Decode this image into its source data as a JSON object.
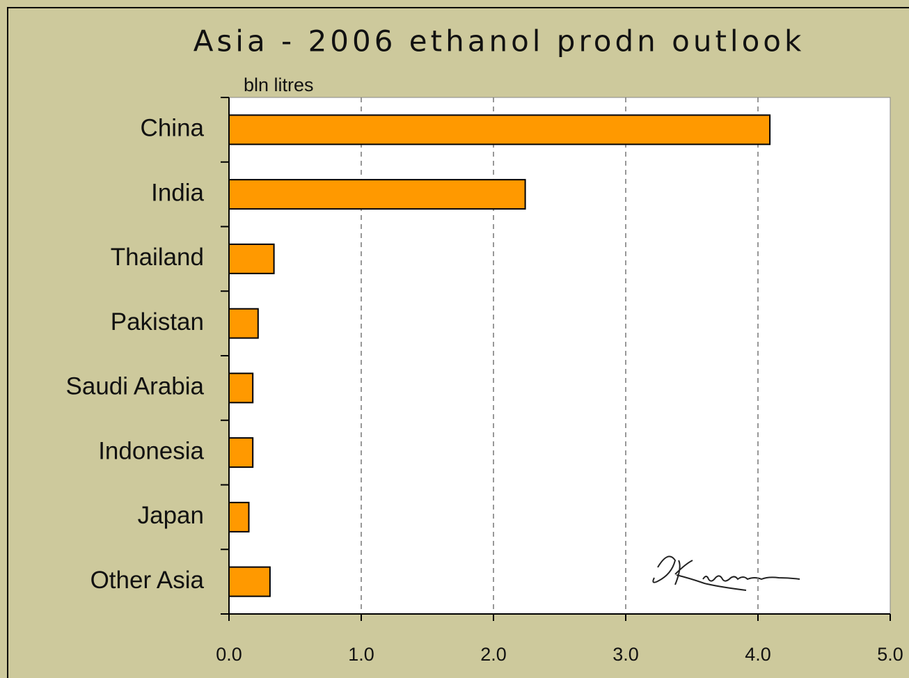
{
  "chart_data": {
    "type": "bar",
    "orientation": "horizontal",
    "title": "Asia - 2006 ethanol prodn outlook",
    "y_label": "bln litres",
    "categories": [
      "China",
      "India",
      "Thailand",
      "Pakistan",
      "Saudi Arabia",
      "Indonesia",
      "Japan",
      "Other Asia"
    ],
    "values": [
      4.09,
      2.24,
      0.34,
      0.22,
      0.18,
      0.18,
      0.15,
      0.31
    ],
    "color": "#ff9900",
    "xlim": [
      0,
      5
    ],
    "xticks": [
      {
        "value": 0,
        "label": "0.0"
      },
      {
        "value": 1,
        "label": "1.0"
      },
      {
        "value": 2,
        "label": "2.0"
      },
      {
        "value": 3,
        "label": "3.0"
      },
      {
        "value": 4,
        "label": "4.0"
      },
      {
        "value": 5,
        "label": "5.0"
      }
    ],
    "grid": true
  }
}
